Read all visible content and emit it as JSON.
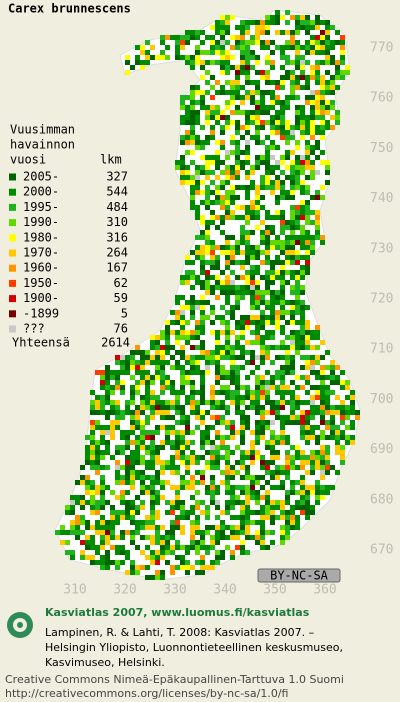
{
  "title": "Carex brunnescens",
  "legend": {
    "heading": [
      "Vuusimman",
      "havainnon",
      "vuosi"
    ],
    "count_heading": "lkm",
    "entries": [
      {
        "label": "2005-",
        "count": 327,
        "color": "#006400"
      },
      {
        "label": "2000-",
        "count": 544,
        "color": "#008c00"
      },
      {
        "label": "1995-",
        "count": 484,
        "color": "#1fb41f"
      },
      {
        "label": "1990-",
        "count": 310,
        "color": "#5fd700"
      },
      {
        "label": "1980-",
        "count": 316,
        "color": "#ffff00"
      },
      {
        "label": "1970-",
        "count": 264,
        "color": "#ffc800"
      },
      {
        "label": "1960-",
        "count": 167,
        "color": "#ff9600"
      },
      {
        "label": "1950-",
        "count": 62,
        "color": "#ff3c00"
      },
      {
        "label": "1900-",
        "count": 59,
        "color": "#d20000"
      },
      {
        "label": "-1899",
        "count": 5,
        "color": "#780000"
      },
      {
        "label": "???",
        "count": 76,
        "color": "#c8c8c8"
      }
    ],
    "total_label": "Yhteensä",
    "total": 2614
  },
  "grid": {
    "y_labels": [
      770,
      760,
      750,
      740,
      730,
      720,
      710,
      700,
      690,
      680,
      670
    ],
    "x_labels": [
      310,
      320,
      330,
      340,
      350,
      360
    ]
  },
  "badge": "BY-NC-SA",
  "footer": {
    "heading": "Kasviatlas 2007, www.luomus.fi/kasviatlas",
    "citation": [
      "Lampinen, R. & Lahti, T. 2008: Kasviatlas 2007. –",
      "Helsingin Yliopisto, Luonnontieteellinen keskusmuseo,",
      "Kasvimuseo, Helsinki."
    ],
    "license": [
      "Creative Commons Nimeä-Epäkaupallinen-Tarttuva 1.0 Suomi",
      "http://creativecommons.org/licenses/by-nc-sa/1.0/fi"
    ]
  }
}
